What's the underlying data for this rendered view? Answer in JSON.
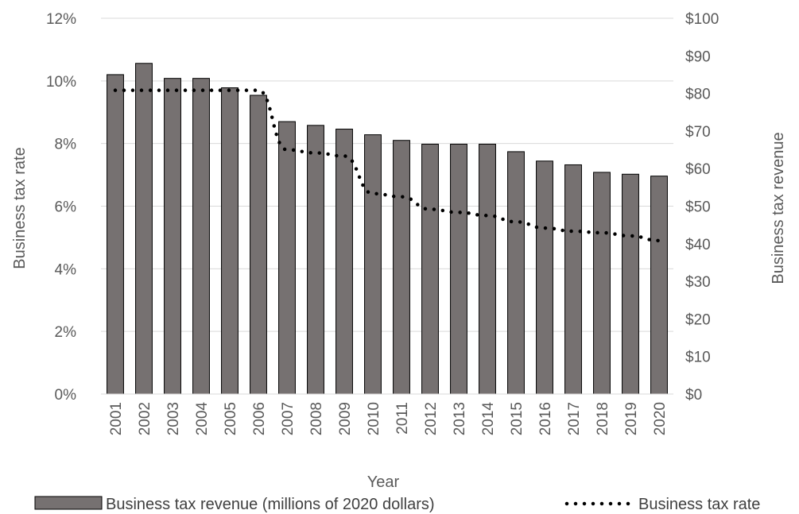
{
  "chart_data": {
    "type": "bar",
    "title": "",
    "xlabel": "Year",
    "ylabel_left": "Business tax rate",
    "ylabel_right": "Business tax revenue",
    "categories": [
      "2001",
      "2002",
      "2003",
      "2004",
      "2005",
      "2006",
      "2007",
      "2008",
      "2009",
      "2010",
      "2011",
      "2012",
      "2013",
      "2014",
      "2015",
      "2016",
      "2017",
      "2018",
      "2019",
      "2020"
    ],
    "left_axis": {
      "ylim": [
        0,
        0.12
      ],
      "ticks": [
        {
          "value": 0,
          "label": "0%"
        },
        {
          "value": 0.02,
          "label": "2%"
        },
        {
          "value": 0.04,
          "label": "4%"
        },
        {
          "value": 0.06,
          "label": "6%"
        },
        {
          "value": 0.08,
          "label": "8%"
        },
        {
          "value": 0.1,
          "label": "10%"
        },
        {
          "value": 0.12,
          "label": "12%"
        }
      ]
    },
    "right_axis": {
      "ylim": [
        0,
        100
      ],
      "ticks": [
        {
          "value": 0,
          "label": "$0"
        },
        {
          "value": 10,
          "label": "$10"
        },
        {
          "value": 20,
          "label": "$20"
        },
        {
          "value": 30,
          "label": "$30"
        },
        {
          "value": 40,
          "label": "$40"
        },
        {
          "value": 50,
          "label": "$50"
        },
        {
          "value": 60,
          "label": "$60"
        },
        {
          "value": 70,
          "label": "$70"
        },
        {
          "value": 80,
          "label": "$80"
        },
        {
          "value": 90,
          "label": "$90"
        },
        {
          "value": 100,
          "label": "$100"
        }
      ]
    },
    "grid": true,
    "legend_position": "bottom",
    "series": [
      {
        "name": "Business tax revenue (millions of 2020 dollars)",
        "type": "bar",
        "axis": "right",
        "color": "#767171",
        "values": [
          85,
          88,
          84,
          84,
          81.5,
          79.5,
          72.5,
          71.5,
          70.5,
          69,
          67.5,
          66.5,
          66.5,
          66.5,
          64.5,
          62,
          61,
          59,
          58.5,
          58
        ]
      },
      {
        "name": "Business tax rate",
        "type": "line",
        "style": "dotted",
        "axis": "left",
        "color": "#000000",
        "values": [
          0.097,
          0.097,
          0.097,
          0.097,
          0.097,
          0.097,
          0.078,
          0.077,
          0.076,
          0.064,
          0.063,
          0.059,
          0.058,
          0.057,
          0.055,
          0.053,
          0.052,
          0.0515,
          0.0505,
          0.049
        ]
      }
    ]
  }
}
